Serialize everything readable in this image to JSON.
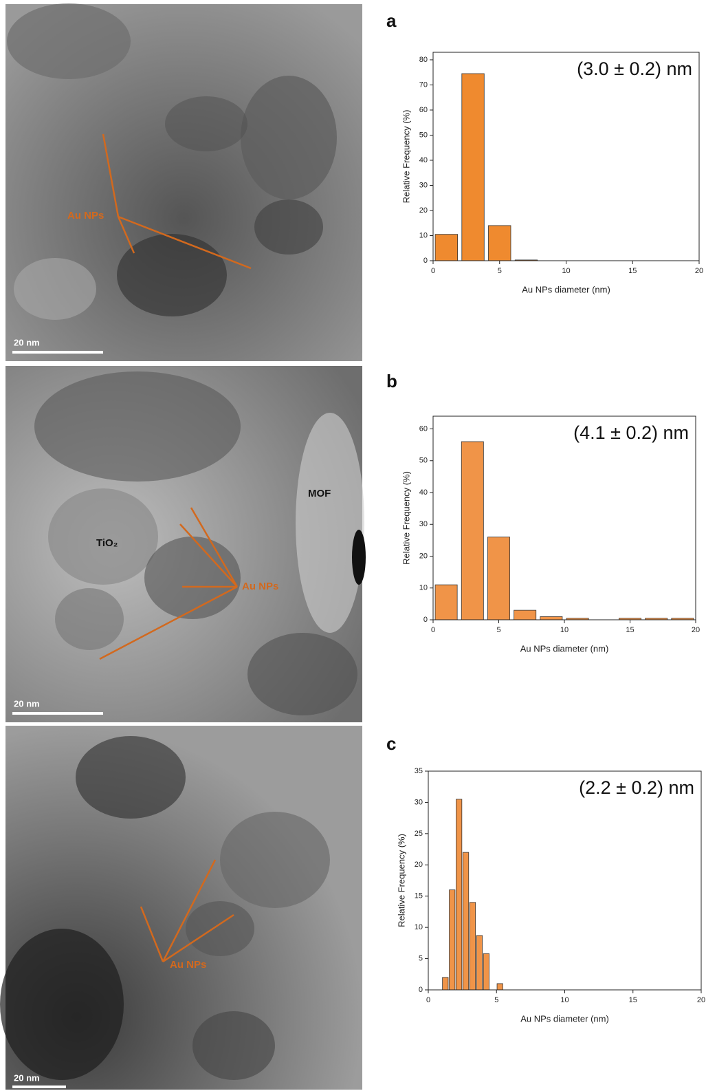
{
  "chart_data": [
    {
      "type": "histogram",
      "panel": "a",
      "annotation": "(3.0 ± 0.2) nm",
      "xlabel": "Au NPs diameter (nm)",
      "ylabel": "Relative Frequency (%)",
      "color": "#ef8a2f",
      "bins": [
        0,
        2,
        4,
        6,
        8,
        10,
        12,
        14,
        16,
        18,
        20
      ],
      "values": [
        10.5,
        74.5,
        14,
        0.3,
        0,
        0,
        0,
        0,
        0,
        0
      ],
      "xlim": [
        0,
        20
      ],
      "xticks": [
        0,
        5,
        10,
        15,
        20
      ],
      "ylim": [
        0,
        83
      ],
      "yticks": [
        0,
        10,
        20,
        30,
        40,
        50,
        60,
        70,
        80
      ]
    },
    {
      "type": "histogram",
      "panel": "b",
      "annotation": "(4.1 ± 0.2) nm",
      "xlabel": "Au NPs diameter (nm)",
      "ylabel": "Relative Frequency (%)",
      "color": "#f09448",
      "bins": [
        0,
        2,
        4,
        6,
        8,
        10,
        12,
        14,
        16,
        18,
        20
      ],
      "values": [
        11,
        56,
        26,
        3,
        1,
        0.5,
        0,
        0.5,
        0.5,
        0.5
      ],
      "xlim": [
        0,
        20
      ],
      "xticks": [
        0,
        5,
        10,
        15,
        20
      ],
      "ylim": [
        0,
        64
      ],
      "yticks": [
        0,
        10,
        20,
        30,
        40,
        50,
        60
      ]
    },
    {
      "type": "histogram",
      "panel": "c",
      "annotation": "(2.2 ± 0.2) nm",
      "xlabel": "Au NPs diameter (nm)",
      "ylabel": "Relative Frequency (%)",
      "color": "#f09448",
      "bins": [
        1,
        1.5,
        2,
        2.5,
        3,
        3.5,
        4,
        4.5,
        5,
        5.5
      ],
      "values": [
        2,
        16,
        30.5,
        22,
        14,
        8.7,
        5.8,
        0,
        1
      ],
      "xlim": [
        0,
        20
      ],
      "xticks": [
        0,
        5,
        10,
        15,
        20
      ],
      "ylim": [
        0,
        35
      ],
      "yticks": [
        0,
        5,
        10,
        15,
        20,
        25,
        30,
        35
      ]
    }
  ],
  "images": [
    {
      "annotations": [
        "Au NPs"
      ],
      "scale_bar": "20 nm"
    },
    {
      "annotations": [
        "Au NPs",
        "TiO₂",
        "MOF"
      ],
      "scale_bar": "20 nm"
    },
    {
      "annotations": [
        "Au NPs"
      ],
      "scale_bar": "20 nm"
    }
  ]
}
